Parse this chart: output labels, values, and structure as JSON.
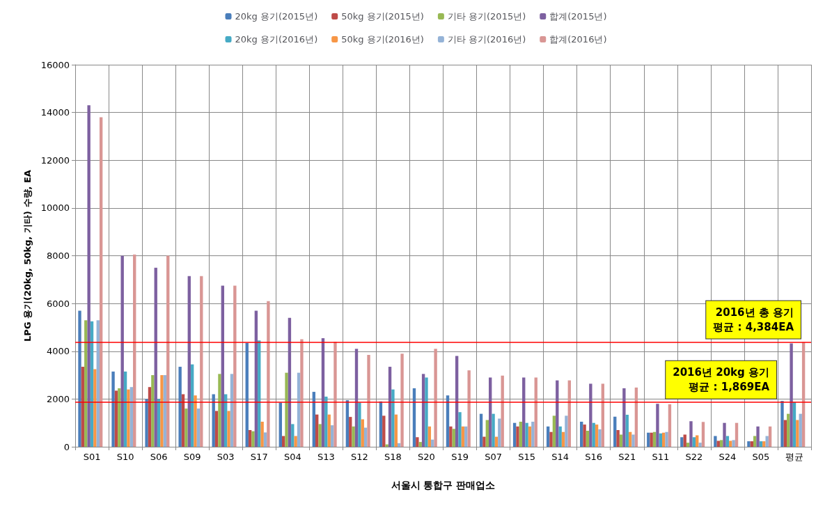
{
  "chart_data": {
    "type": "bar",
    "xlabel": "서울시 통합구 판매업소",
    "ylabel": "LPG 용기(20kg, 50kg, 기타) 수량, EA",
    "categories": [
      "S01",
      "S10",
      "S06",
      "S09",
      "S03",
      "S17",
      "S04",
      "S13",
      "S12",
      "S18",
      "S20",
      "S19",
      "S07",
      "S15",
      "S14",
      "S16",
      "S21",
      "S11",
      "S22",
      "S24",
      "S05",
      "평균"
    ],
    "series": [
      {
        "name": "20kg 용기(2015년)",
        "color": "#4a7ebb",
        "values": [
          5700,
          3150,
          2000,
          3350,
          2200,
          4350,
          1850,
          2300,
          1950,
          1900,
          2450,
          2150,
          1380,
          1000,
          850,
          1050,
          1260,
          590,
          400,
          450,
          230,
          1920
        ]
      },
      {
        "name": "50kg 용기(2015년)",
        "color": "#be4b48",
        "values": [
          3350,
          2350,
          2500,
          2200,
          1500,
          700,
          450,
          1350,
          1250,
          1300,
          400,
          850,
          420,
          850,
          620,
          930,
          700,
          590,
          510,
          250,
          230,
          1120
        ]
      },
      {
        "name": "기타 용기(2015년)",
        "color": "#98b954",
        "values": [
          5300,
          2450,
          3000,
          1600,
          3050,
          650,
          3100,
          950,
          850,
          100,
          200,
          750,
          1120,
          1050,
          1300,
          670,
          510,
          620,
          170,
          280,
          450,
          1380
        ]
      },
      {
        "name": "합계(2015년)",
        "color": "#7d60a0",
        "values": [
          14300,
          8000,
          7500,
          7150,
          6750,
          5700,
          5400,
          4550,
          4100,
          3350,
          3050,
          3800,
          2900,
          2900,
          2780,
          2640,
          2450,
          1800,
          1070,
          1000,
          850,
          4330
        ]
      },
      {
        "name": "20kg 용기(2016년)",
        "color": "#46aac5",
        "values": [
          5250,
          3150,
          2000,
          3450,
          2200,
          4450,
          950,
          2100,
          1850,
          2400,
          2900,
          1450,
          1380,
          1000,
          850,
          1000,
          1340,
          560,
          400,
          450,
          230,
          1870
        ]
      },
      {
        "name": "50kg 용기(2016년)",
        "color": "#f79646",
        "values": [
          3250,
          2400,
          3000,
          2150,
          1500,
          1050,
          450,
          1350,
          1150,
          1350,
          850,
          850,
          420,
          850,
          620,
          930,
          620,
          590,
          480,
          250,
          230,
          1120
        ]
      },
      {
        "name": "기타 용기(2016년)",
        "color": "#95b3d7",
        "values": [
          5300,
          2500,
          3000,
          1600,
          3050,
          600,
          3100,
          900,
          800,
          150,
          300,
          850,
          1180,
          1050,
          1300,
          730,
          510,
          620,
          170,
          280,
          450,
          1380
        ]
      },
      {
        "name": "합계(2016년)",
        "color": "#d99694",
        "values": [
          13800,
          8050,
          8000,
          7150,
          6750,
          6100,
          4500,
          4400,
          3850,
          3900,
          4100,
          3200,
          2980,
          2900,
          2780,
          2640,
          2480,
          1780,
          1040,
          1000,
          850,
          4380
        ]
      }
    ],
    "ylim": [
      0,
      16000
    ],
    "yticks": [
      0,
      2000,
      4000,
      6000,
      8000,
      10000,
      12000,
      14000,
      16000
    ],
    "grid": true,
    "legend": "top",
    "ref_lines": [
      {
        "axis": "y",
        "value": 1869,
        "color": "#ff0000",
        "label": "2016년 20kg 용기\n평균 : 1,869EA"
      },
      {
        "axis": "y",
        "value": 4384,
        "color": "#ff0000",
        "label": "2016년 총 용기\n평균 : 4,384EA"
      }
    ]
  }
}
